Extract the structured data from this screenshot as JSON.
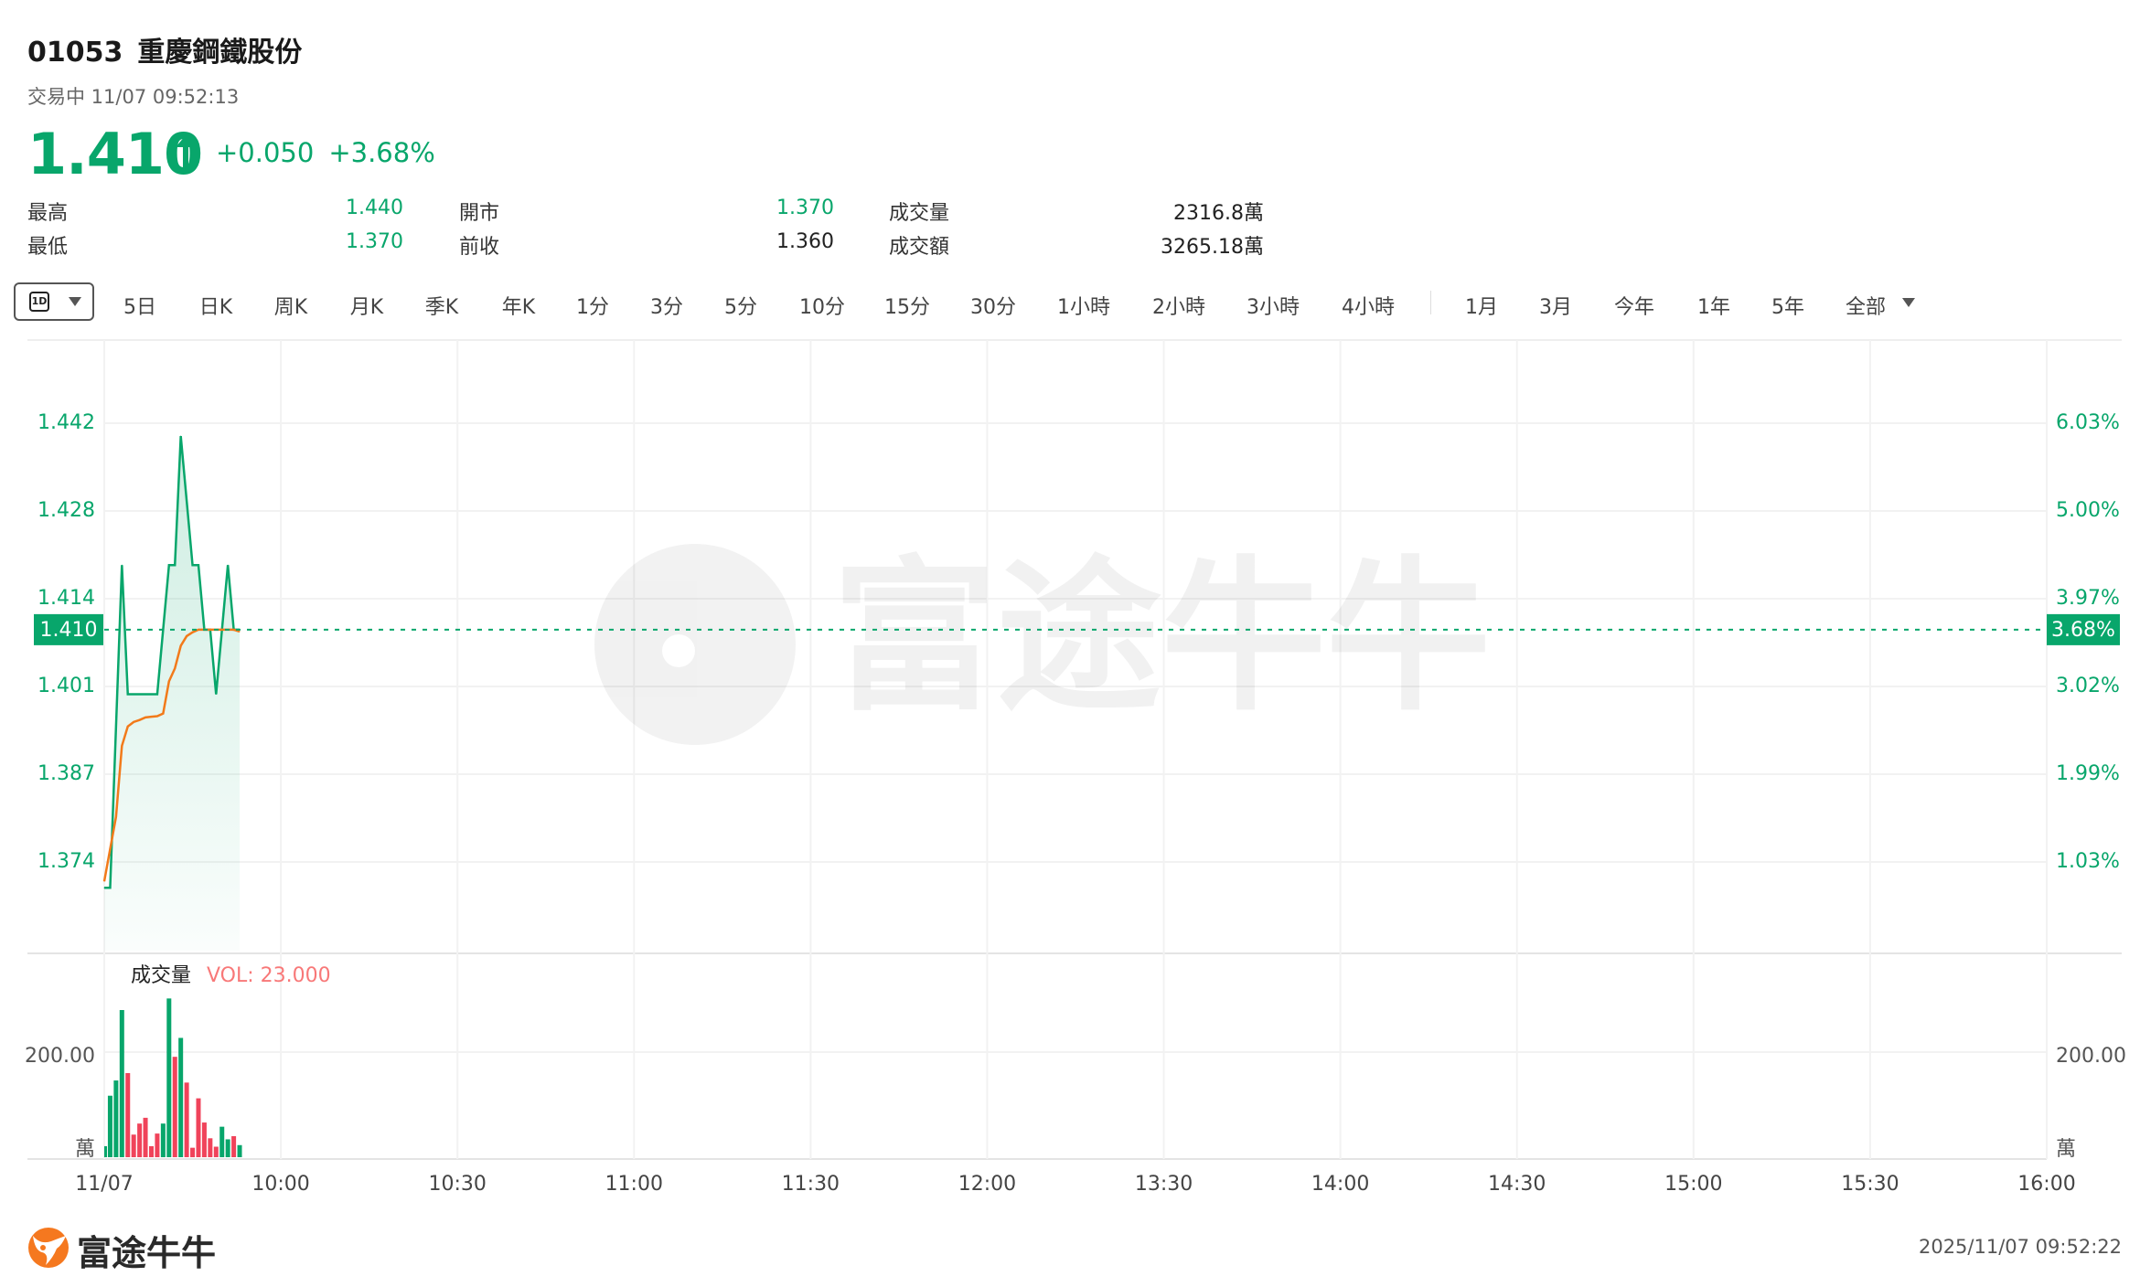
{
  "header": {
    "code": "01053",
    "name": "重慶鋼鐵股份",
    "status": "交易中 11/07 09:52:13",
    "price": "1.410",
    "change": "+0.050",
    "change_pct": "+3.68%",
    "direction_icon": "arrow-up-icon"
  },
  "stats": {
    "high_label": "最高",
    "high": "1.440",
    "low_label": "最低",
    "low": "1.370",
    "open_label": "開市",
    "open": "1.370",
    "prev_close_label": "前收",
    "prev_close": "1.360",
    "volume_label": "成交量",
    "volume": "2316.8萬",
    "turnover_label": "成交額",
    "turnover": "3265.18萬"
  },
  "toolbar": {
    "selected": "1D",
    "periods": [
      "5日",
      "日K",
      "周K",
      "月K",
      "季K",
      "年K",
      "1分",
      "3分",
      "5分",
      "10分",
      "15分",
      "30分",
      "1小時",
      "2小時",
      "3小時",
      "4小時"
    ],
    "ranges": [
      "1月",
      "3月",
      "今年",
      "1年",
      "5年",
      "全部"
    ]
  },
  "colors": {
    "up": "#08a66b",
    "down": "#f0435a",
    "avg_line": "#f27a1a",
    "vol_label": "#f87878"
  },
  "watermark": "富途牛牛",
  "chart_data": [
    {
      "type": "line",
      "x": [
        "09:30",
        "09:31",
        "09:32",
        "09:33",
        "09:34",
        "09:35",
        "09:36",
        "09:37",
        "09:38",
        "09:39",
        "09:40",
        "09:41",
        "09:42",
        "09:43",
        "09:44",
        "09:45",
        "09:46",
        "09:47",
        "09:48",
        "09:49",
        "09:50",
        "09:51",
        "09:52",
        "09:53"
      ],
      "series": [
        {
          "values": [
            1.37,
            1.37,
            1.395,
            1.42,
            1.4,
            1.4,
            1.4,
            1.4,
            1.4,
            1.4,
            1.41,
            1.42,
            1.42,
            1.44,
            1.43,
            1.42,
            1.42,
            1.41,
            1.41,
            1.4,
            1.41,
            1.42,
            1.41,
            1.41
          ],
          "color": "#08a66b"
        },
        {
          "values": [
            1.371,
            1.376,
            1.381,
            1.392,
            1.395,
            1.3957,
            1.396,
            1.3964,
            1.3965,
            1.3966,
            1.397,
            1.402,
            1.404,
            1.4075,
            1.409,
            1.4096,
            1.41,
            1.41,
            1.41,
            1.41,
            1.41,
            1.41,
            1.41,
            1.4097
          ],
          "color": "#f27a1a"
        }
      ],
      "ylim": [
        1.374,
        1.442
      ],
      "y_ticks": [
        "1.442",
        "1.428",
        "1.414",
        "1.401",
        "1.387",
        "1.374"
      ],
      "y2_ticks": [
        "6.03%",
        "5.00%",
        "3.97%",
        "3.02%",
        "1.99%",
        "1.03%"
      ],
      "current_price_label": "1.410",
      "current_pct_label": "3.68%",
      "x_ticks": [
        "11/07",
        "10:00",
        "10:30",
        "11:00",
        "11:30",
        "12:00",
        "13:30",
        "14:00",
        "14:30",
        "15:00",
        "15:30",
        "16:00"
      ],
      "grid": true
    },
    {
      "type": "bar",
      "title": "成交量",
      "indicator": "VOL: 23.000",
      "unit": "萬",
      "y_tick": "200.00",
      "values": [
        21,
        117,
        146,
        280,
        160,
        43,
        64,
        75,
        21,
        45,
        64,
        302,
        191,
        227,
        142,
        18,
        112,
        66,
        36,
        20,
        58,
        34,
        40,
        23
      ],
      "direction": [
        "up",
        "up",
        "up",
        "up",
        "down",
        "down",
        "down",
        "down",
        "down",
        "down",
        "up",
        "up",
        "down",
        "up",
        "down",
        "down",
        "down",
        "down",
        "down",
        "down",
        "up",
        "up",
        "down",
        "up"
      ]
    }
  ],
  "footer": {
    "brand": "富途牛牛",
    "timestamp": "2025/11/07 09:52:22"
  }
}
